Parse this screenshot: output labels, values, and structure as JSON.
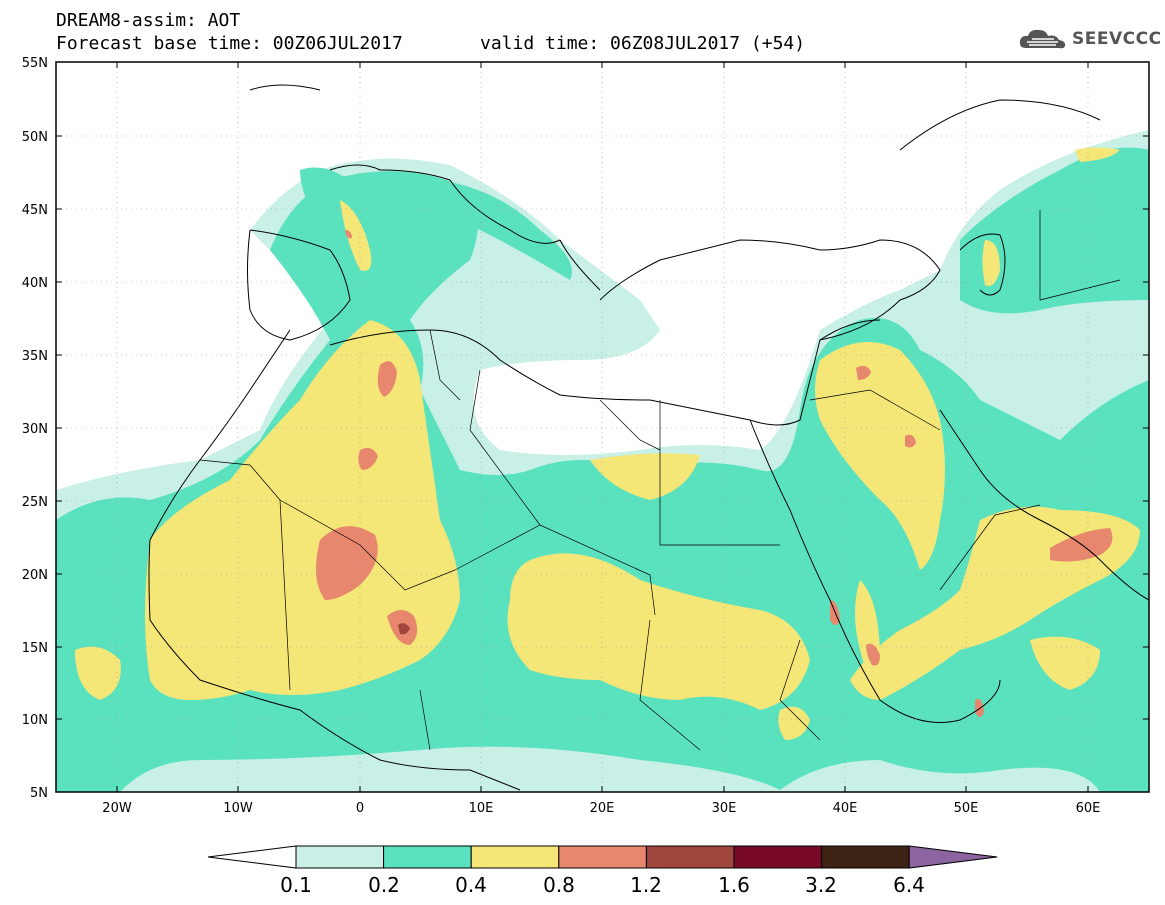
{
  "header": {
    "title": "DREAM8-assim: AOT",
    "base_time": "Forecast base time: 00Z06JUL2017",
    "valid_time": "valid time: 06Z08JUL2017 (+54)"
  },
  "logo": {
    "text": "SEEVCCC",
    "icon": "cloud-logo-icon"
  },
  "map": {
    "lat_labels": [
      "55N",
      "50N",
      "45N",
      "40N",
      "35N",
      "30N",
      "25N",
      "20N",
      "15N",
      "10N",
      "5N"
    ],
    "lon_labels": [
      "20W",
      "10W",
      "0",
      "10E",
      "20E",
      "30E",
      "40E",
      "50E",
      "60E"
    ],
    "lat_range": [
      5,
      55
    ],
    "lon_range": [
      -25,
      65
    ]
  },
  "colorbar": {
    "labels": [
      "0.1",
      "0.2",
      "0.4",
      "0.8",
      "1.2",
      "1.6",
      "3.2",
      "6.4"
    ],
    "colors": [
      "#ffffff",
      "#c8f0e6",
      "#5ae1be",
      "#f5e678",
      "#e6876e",
      "#a0463c",
      "#780a28",
      "#3c2314",
      "#8c64a0"
    ]
  },
  "colors": {
    "c01": "#c8f0e6",
    "c02": "#5ae1be",
    "c04": "#f5e678",
    "c08": "#e6876e",
    "c12": "#a0463c"
  }
}
